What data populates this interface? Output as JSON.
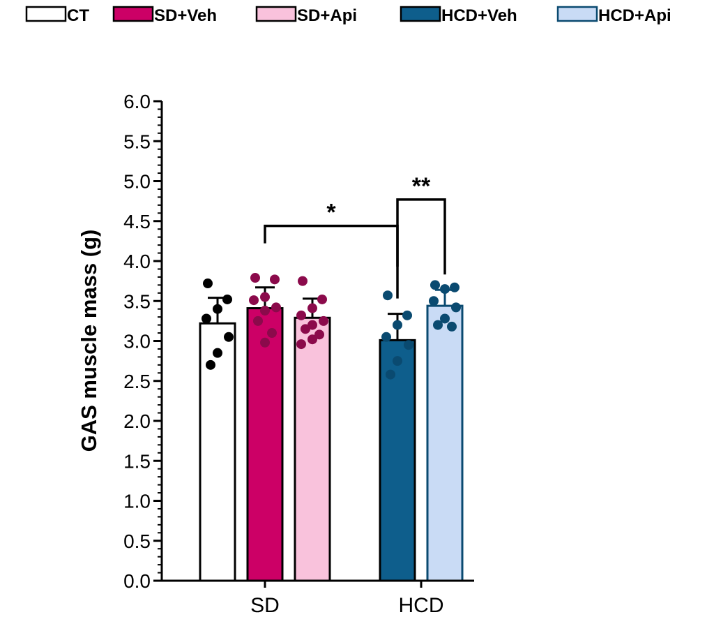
{
  "chart_data": {
    "type": "bar",
    "ylabel": "GAS muscle mass (g)",
    "xlabel": "",
    "ylim": [
      0,
      6.0
    ],
    "yticks": [
      "0.0",
      "0.5",
      "1.0",
      "1.5",
      "2.0",
      "2.5",
      "3.0",
      "3.5",
      "4.0",
      "4.5",
      "5.0",
      "5.5",
      "6.0"
    ],
    "ytick_values": [
      0,
      0.5,
      1.0,
      1.5,
      2.0,
      2.5,
      3.0,
      3.5,
      4.0,
      4.5,
      5.0,
      5.5,
      6.0
    ],
    "groups": [
      "SD",
      "HCD"
    ],
    "legend_position": "top",
    "series": [
      {
        "name": "CT",
        "group": "SD",
        "fill": "#ffffff",
        "stroke": "#000000",
        "dot": "#000000",
        "mean": 3.22,
        "error": 0.32,
        "points": [
          3.72,
          3.52,
          3.4,
          3.28,
          3.05,
          2.85,
          2.7
        ]
      },
      {
        "name": "SD+Veh",
        "group": "SD",
        "fill": "#cc0066",
        "stroke": "#000000",
        "dot": "#8b0a4b",
        "mean": 3.41,
        "error": 0.26,
        "points": [
          3.79,
          3.77,
          3.55,
          3.51,
          3.42,
          3.38,
          3.25,
          3.1,
          2.98
        ]
      },
      {
        "name": "SD+Api",
        "group": "SD",
        "fill": "#f9c2dc",
        "stroke": "#000000",
        "dot": "#8b0a4b",
        "mean": 3.29,
        "error": 0.24,
        "points": [
          3.75,
          3.52,
          3.41,
          3.32,
          3.25,
          3.2,
          3.15,
          3.08,
          3.02,
          2.96
        ]
      },
      {
        "name": "HCD+Veh",
        "group": "HCD",
        "fill": "#0e5e8c",
        "stroke": "#000000",
        "dot": "#0a4a70",
        "mean": 3.01,
        "error": 0.33,
        "points": [
          3.57,
          3.32,
          3.2,
          3.05,
          2.95,
          2.75,
          2.58
        ]
      },
      {
        "name": "HCD+Api",
        "group": "HCD",
        "fill": "#c9dbf5",
        "stroke": "#0a4a70",
        "dot": "#0a4a70",
        "mean": 3.44,
        "error": 0.2,
        "points": [
          3.7,
          3.67,
          3.65,
          3.5,
          3.42,
          3.28,
          3.2,
          3.18
        ]
      }
    ],
    "significance": [
      {
        "from": "SD+Veh",
        "to": "HCD+Veh",
        "label": "*",
        "y": 4.44
      },
      {
        "from": "HCD+Veh",
        "to": "HCD+Api",
        "label": "**",
        "y": 4.77
      }
    ]
  }
}
